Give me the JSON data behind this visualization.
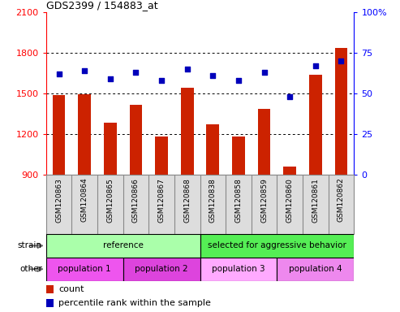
{
  "title": "GDS2399 / 154883_at",
  "samples": [
    "GSM120863",
    "GSM120864",
    "GSM120865",
    "GSM120866",
    "GSM120867",
    "GSM120868",
    "GSM120838",
    "GSM120858",
    "GSM120859",
    "GSM120860",
    "GSM120861",
    "GSM120862"
  ],
  "counts": [
    1490,
    1495,
    1285,
    1415,
    1180,
    1545,
    1275,
    1185,
    1390,
    960,
    1640,
    1840
  ],
  "percentiles": [
    62,
    64,
    59,
    63,
    58,
    65,
    61,
    58,
    63,
    48,
    67,
    70
  ],
  "ymin": 900,
  "ymax": 2100,
  "yticks": [
    900,
    1200,
    1500,
    1800,
    2100
  ],
  "y2min": 0,
  "y2max": 100,
  "y2ticks": [
    0,
    25,
    50,
    75,
    100
  ],
  "bar_color": "#CC2200",
  "dot_color": "#0000BB",
  "strain_groups": [
    {
      "label": "reference",
      "start": 0,
      "end": 6,
      "color": "#AAFFAA"
    },
    {
      "label": "selected for aggressive behavior",
      "start": 6,
      "end": 12,
      "color": "#55EE55"
    }
  ],
  "other_groups": [
    {
      "label": "population 1",
      "start": 0,
      "end": 3,
      "color": "#EE55EE"
    },
    {
      "label": "population 2",
      "start": 3,
      "end": 6,
      "color": "#DD44DD"
    },
    {
      "label": "population 3",
      "start": 6,
      "end": 9,
      "color": "#FFAAFF"
    },
    {
      "label": "population 4",
      "start": 9,
      "end": 12,
      "color": "#EE88EE"
    }
  ],
  "tick_bg_color": "#DDDDDD",
  "border_color": "#888888"
}
